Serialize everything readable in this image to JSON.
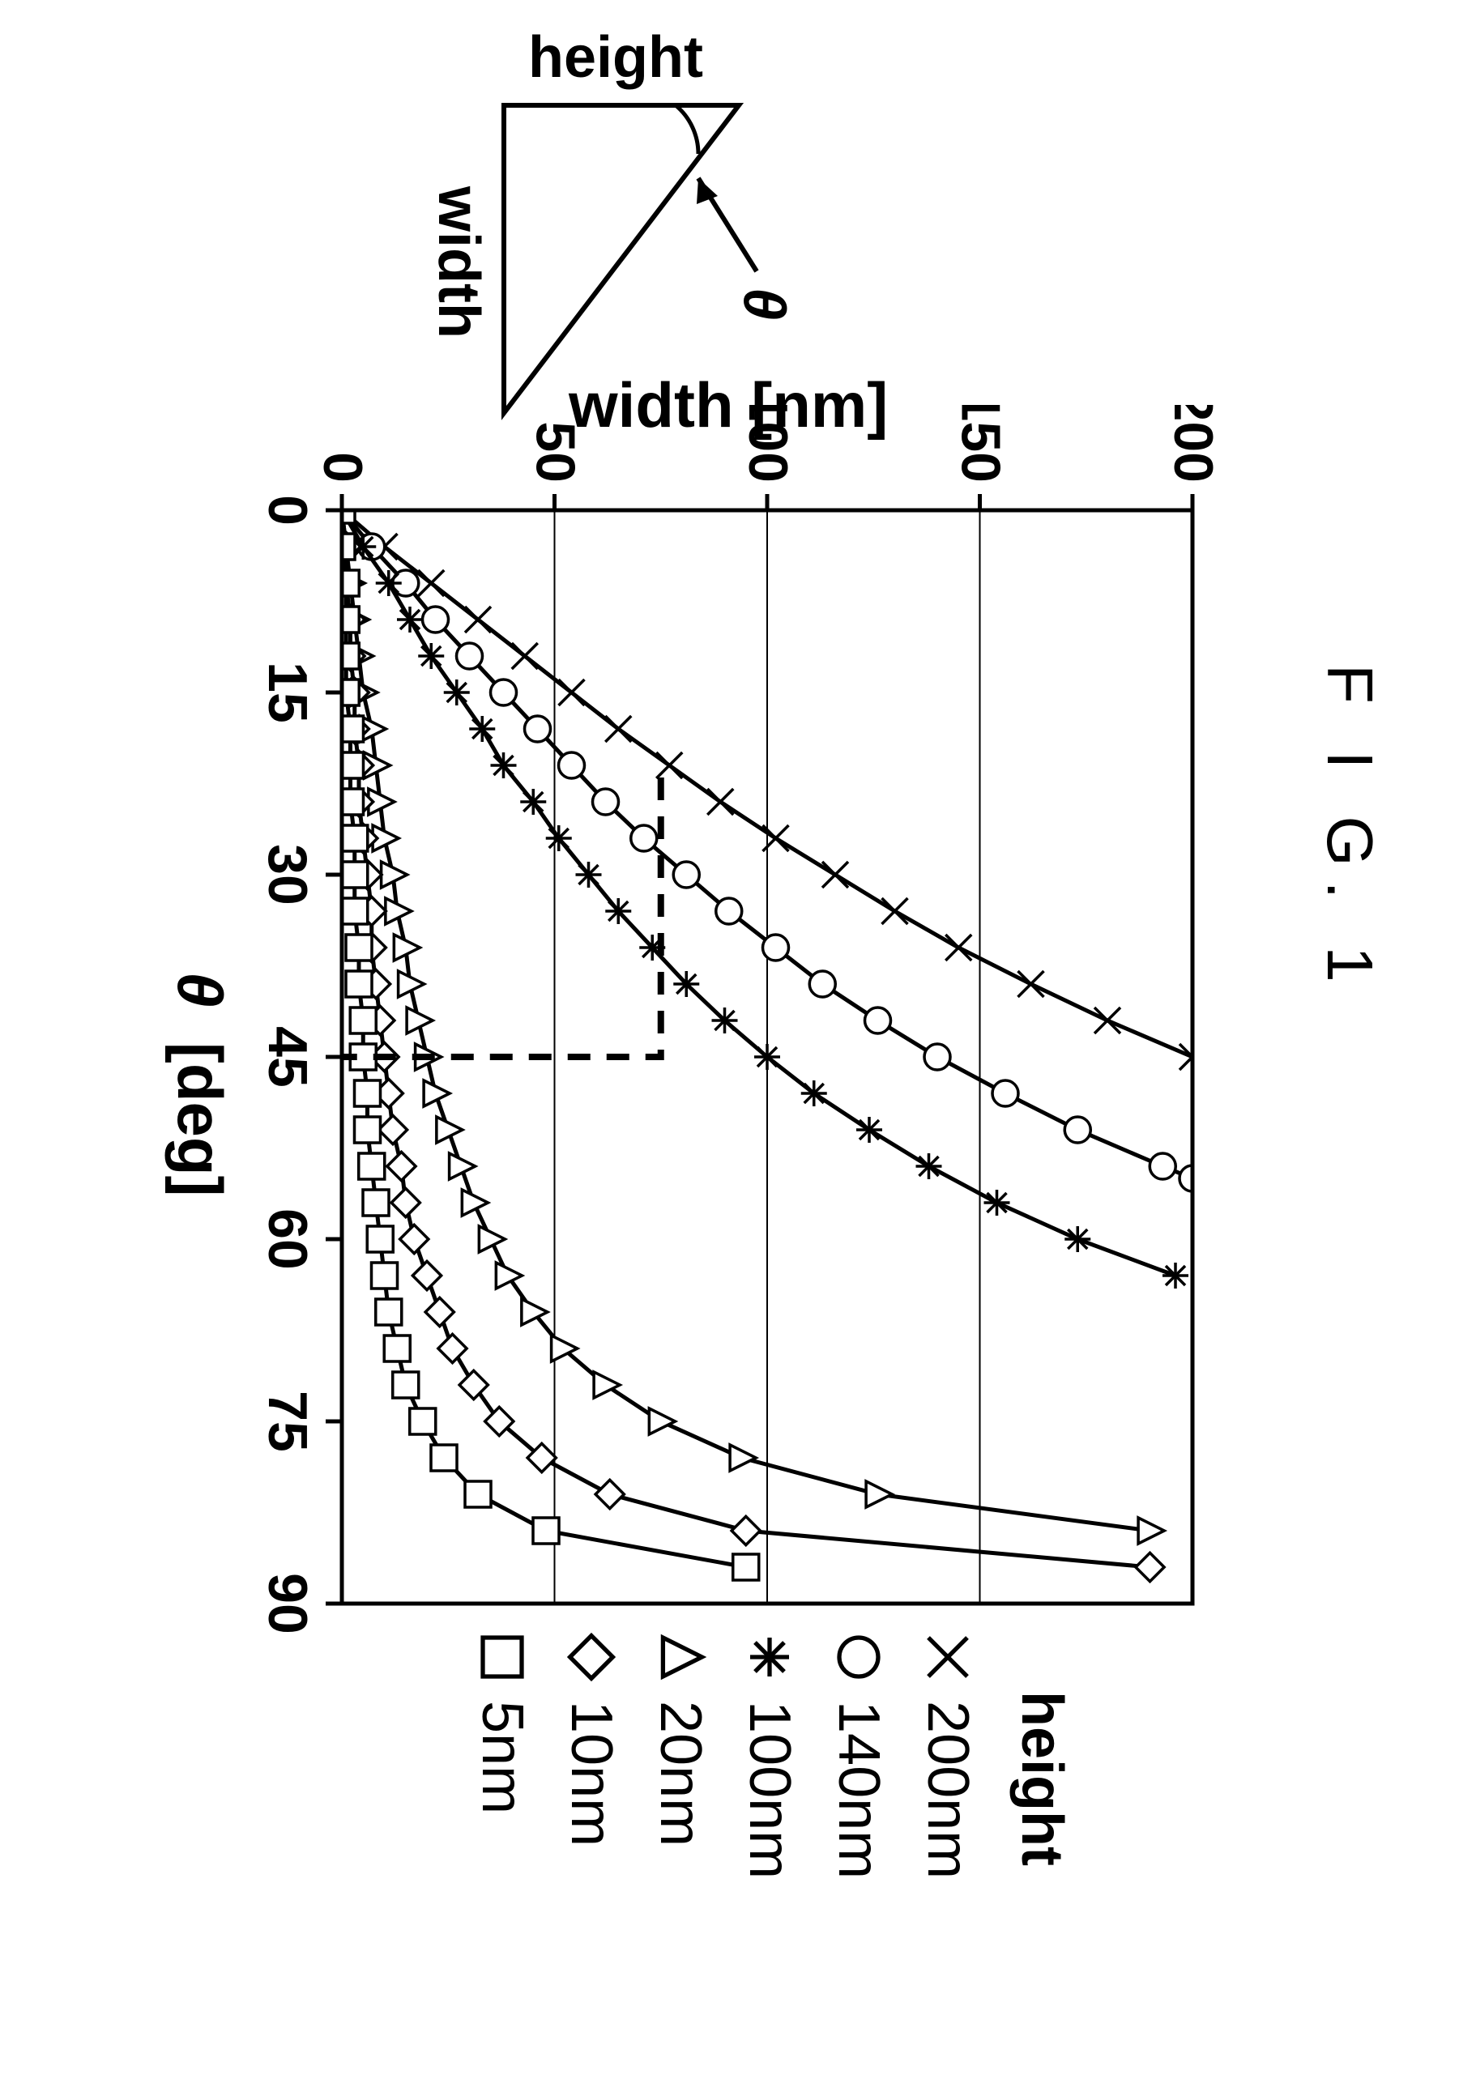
{
  "title": "F I G.  1",
  "inset": {
    "height_label": "height",
    "width_label": "width",
    "theta_label": "θ"
  },
  "chart": {
    "type": "line-with-markers",
    "xlim": [
      0,
      90
    ],
    "ylim": [
      0,
      200
    ],
    "xticks": [
      0,
      15,
      30,
      45,
      60,
      75,
      90
    ],
    "yticks": [
      0,
      50,
      100,
      150,
      200
    ],
    "xlabel": "θ",
    "xlabel_unit": "[deg]",
    "ylabel": "width [nm]",
    "axis_color": "#000000",
    "grid_color": "#000000",
    "axis_line_width": 5,
    "grid_line_width": 2,
    "tick_fontsize": 68,
    "box_line": {
      "x0": 22,
      "x1": 45,
      "y0": 0,
      "y1": 75,
      "dash": "28 20",
      "width": 8,
      "color": "#000000"
    },
    "series": [
      {
        "name": "200nm",
        "marker": "x",
        "points": [
          [
            0,
            0
          ],
          [
            3,
            10
          ],
          [
            6,
            21
          ],
          [
            9,
            32
          ],
          [
            12,
            43
          ],
          [
            15,
            54
          ],
          [
            18,
            65
          ],
          [
            21,
            77
          ],
          [
            24,
            89
          ],
          [
            27,
            102
          ],
          [
            30,
            116
          ],
          [
            33,
            130
          ],
          [
            36,
            145
          ],
          [
            39,
            162
          ],
          [
            42,
            180
          ],
          [
            45,
            200
          ]
        ]
      },
      {
        "name": "140nm",
        "marker": "o",
        "points": [
          [
            0,
            0
          ],
          [
            3,
            7
          ],
          [
            6,
            15
          ],
          [
            9,
            22
          ],
          [
            12,
            30
          ],
          [
            15,
            38
          ],
          [
            18,
            46
          ],
          [
            21,
            54
          ],
          [
            24,
            62
          ],
          [
            27,
            71
          ],
          [
            30,
            81
          ],
          [
            33,
            91
          ],
          [
            36,
            102
          ],
          [
            39,
            113
          ],
          [
            42,
            126
          ],
          [
            45,
            140
          ],
          [
            48,
            156
          ],
          [
            51,
            173
          ],
          [
            54,
            193
          ],
          [
            55,
            200
          ]
        ]
      },
      {
        "name": "100nm",
        "marker": "star",
        "points": [
          [
            0,
            0
          ],
          [
            3,
            5
          ],
          [
            6,
            11
          ],
          [
            9,
            16
          ],
          [
            12,
            21
          ],
          [
            15,
            27
          ],
          [
            18,
            33
          ],
          [
            21,
            38
          ],
          [
            24,
            45
          ],
          [
            27,
            51
          ],
          [
            30,
            58
          ],
          [
            33,
            65
          ],
          [
            36,
            73
          ],
          [
            39,
            81
          ],
          [
            42,
            90
          ],
          [
            45,
            100
          ],
          [
            48,
            111
          ],
          [
            51,
            124
          ],
          [
            54,
            138
          ],
          [
            57,
            154
          ],
          [
            60,
            173
          ],
          [
            63,
            196
          ]
        ]
      },
      {
        "name": "20nm",
        "marker": "triangle",
        "points": [
          [
            0,
            0
          ],
          [
            3,
            1
          ],
          [
            6,
            2
          ],
          [
            9,
            3
          ],
          [
            12,
            4
          ],
          [
            15,
            5
          ],
          [
            18,
            7
          ],
          [
            21,
            8
          ],
          [
            24,
            9
          ],
          [
            27,
            10
          ],
          [
            30,
            12
          ],
          [
            33,
            13
          ],
          [
            36,
            15
          ],
          [
            39,
            16
          ],
          [
            42,
            18
          ],
          [
            45,
            20
          ],
          [
            48,
            22
          ],
          [
            51,
            25
          ],
          [
            54,
            28
          ],
          [
            57,
            31
          ],
          [
            60,
            35
          ],
          [
            63,
            39
          ],
          [
            66,
            45
          ],
          [
            69,
            52
          ],
          [
            72,
            62
          ],
          [
            75,
            75
          ],
          [
            78,
            94
          ],
          [
            81,
            126
          ],
          [
            84,
            190
          ]
        ]
      },
      {
        "name": "10nm",
        "marker": "diamond",
        "points": [
          [
            0,
            0
          ],
          [
            3,
            1
          ],
          [
            6,
            1
          ],
          [
            9,
            2
          ],
          [
            12,
            2
          ],
          [
            15,
            3
          ],
          [
            18,
            3
          ],
          [
            21,
            4
          ],
          [
            24,
            4
          ],
          [
            27,
            5
          ],
          [
            30,
            6
          ],
          [
            33,
            7
          ],
          [
            36,
            7
          ],
          [
            39,
            8
          ],
          [
            42,
            9
          ],
          [
            45,
            10
          ],
          [
            48,
            11
          ],
          [
            51,
            12
          ],
          [
            54,
            14
          ],
          [
            57,
            15
          ],
          [
            60,
            17
          ],
          [
            63,
            20
          ],
          [
            66,
            23
          ],
          [
            69,
            26
          ],
          [
            72,
            31
          ],
          [
            75,
            37
          ],
          [
            78,
            47
          ],
          [
            81,
            63
          ],
          [
            84,
            95
          ],
          [
            87,
            190
          ]
        ]
      },
      {
        "name": "5nm",
        "marker": "square",
        "points": [
          [
            0,
            0
          ],
          [
            3,
            0
          ],
          [
            6,
            1
          ],
          [
            9,
            1
          ],
          [
            12,
            1
          ],
          [
            15,
            1
          ],
          [
            18,
            2
          ],
          [
            21,
            2
          ],
          [
            24,
            2
          ],
          [
            27,
            3
          ],
          [
            30,
            3
          ],
          [
            33,
            3
          ],
          [
            36,
            4
          ],
          [
            39,
            4
          ],
          [
            42,
            5
          ],
          [
            45,
            5
          ],
          [
            48,
            6
          ],
          [
            51,
            6
          ],
          [
            54,
            7
          ],
          [
            57,
            8
          ],
          [
            60,
            9
          ],
          [
            63,
            10
          ],
          [
            66,
            11
          ],
          [
            69,
            13
          ],
          [
            72,
            15
          ],
          [
            75,
            19
          ],
          [
            78,
            24
          ],
          [
            81,
            32
          ],
          [
            84,
            48
          ],
          [
            87,
            95
          ]
        ]
      }
    ]
  },
  "legend": {
    "title": "height",
    "items": [
      {
        "marker": "x",
        "label": "200nm"
      },
      {
        "marker": "o",
        "label": "140nm"
      },
      {
        "marker": "star",
        "label": "100nm"
      },
      {
        "marker": "triangle",
        "label": "20nm"
      },
      {
        "marker": "diamond",
        "label": "10nm"
      },
      {
        "marker": "square",
        "label": "5nm"
      }
    ]
  }
}
